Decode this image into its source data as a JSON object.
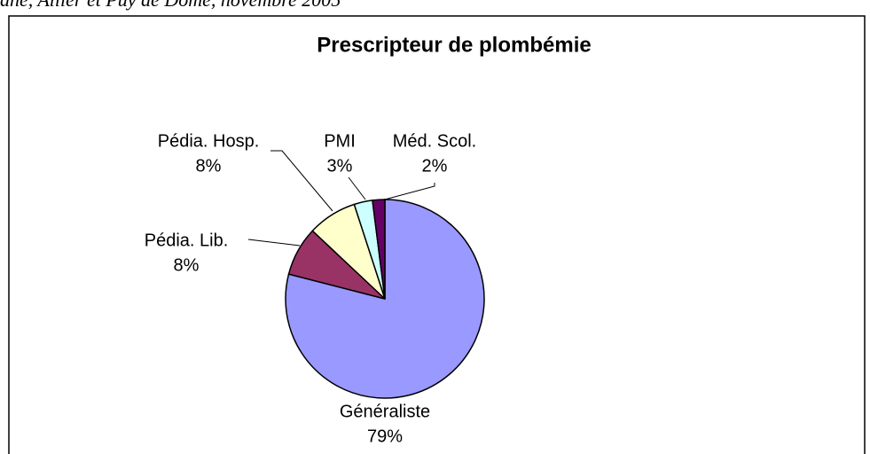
{
  "chart_data": {
    "type": "pie",
    "header": "ane, Allier et Puy de Dôme, novembre 2005",
    "title": "Prescripteur de plombémie",
    "categories": [
      "Généraliste",
      "Pédia. Lib.",
      "Pédia. Hosp.",
      "PMI",
      "Méd. Scol."
    ],
    "values": [
      79,
      8,
      8,
      3,
      2
    ],
    "value_labels": [
      "79%",
      "8%",
      "8%",
      "3%",
      "2%"
    ],
    "colors": [
      "#9999ff",
      "#993366",
      "#ffffcc",
      "#ccffff",
      "#660066"
    ]
  }
}
